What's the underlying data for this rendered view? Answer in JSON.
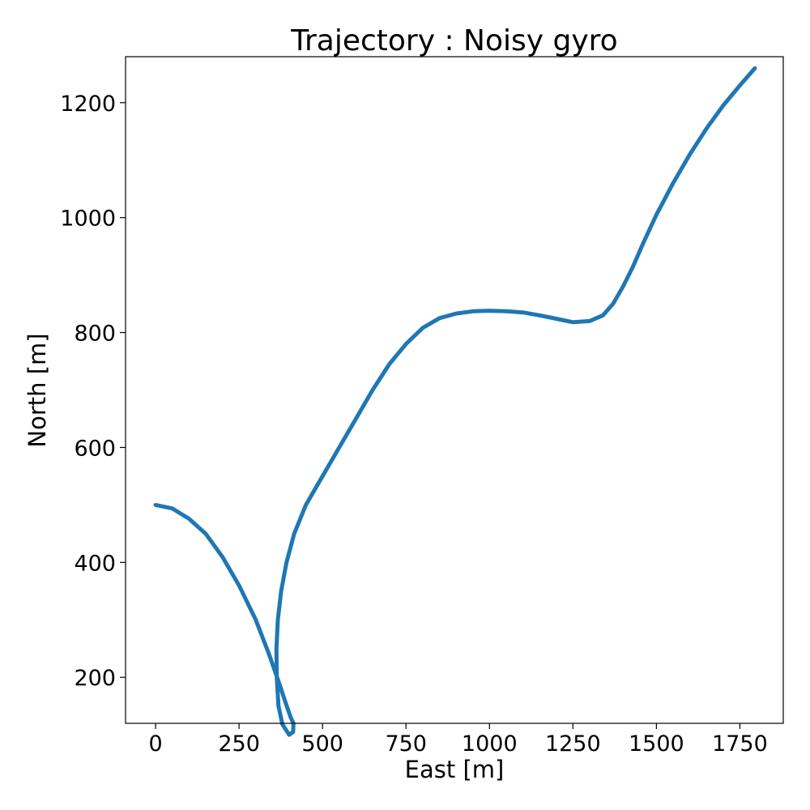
{
  "chart_data": {
    "type": "line",
    "title": "Trajectory : Noisy gyro",
    "xlabel": "East [m]",
    "ylabel": "North [m]",
    "xlim": [
      -90,
      1880
    ],
    "ylim": [
      120,
      1280
    ],
    "xticks": [
      0,
      250,
      500,
      750,
      1000,
      1250,
      1500,
      1750
    ],
    "xtick_labels": [
      "0",
      "250",
      "500",
      "750",
      "1000",
      "1250",
      "1500",
      "1750"
    ],
    "yticks": [
      200,
      400,
      600,
      800,
      1000,
      1200
    ],
    "ytick_labels": [
      "200",
      "400",
      "600",
      "800",
      "1000",
      "1200"
    ],
    "grid": false,
    "color": "#1f77b4",
    "series": [
      {
        "x": [
          0,
          50,
          100,
          150,
          200,
          250,
          300,
          340,
          370,
          390,
          405,
          413,
          412,
          400,
          380,
          368,
          363,
          362,
          366,
          376,
          392,
          415,
          450,
          500,
          550,
          600,
          650,
          700,
          750,
          800,
          850,
          900,
          950,
          1000,
          1050,
          1100,
          1150,
          1200,
          1250,
          1300,
          1340,
          1370,
          1400,
          1430,
          1460,
          1500,
          1550,
          1600,
          1650,
          1700,
          1750,
          1795
        ],
        "y": [
          500,
          494,
          476,
          450,
          410,
          360,
          300,
          240,
          190,
          155,
          130,
          120,
          105,
          100,
          118,
          150,
          200,
          250,
          300,
          350,
          400,
          450,
          500,
          550,
          600,
          650,
          700,
          745,
          780,
          808,
          825,
          833,
          837,
          838,
          837,
          835,
          830,
          824,
          818,
          820,
          830,
          850,
          880,
          915,
          955,
          1005,
          1060,
          1110,
          1155,
          1195,
          1230,
          1260
        ]
      }
    ]
  }
}
